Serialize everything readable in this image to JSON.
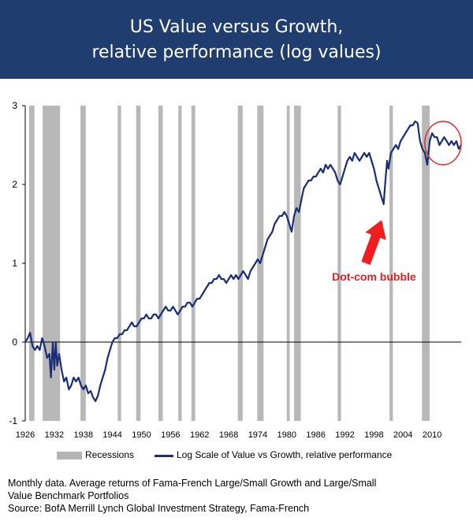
{
  "chart_data": {
    "type": "line",
    "title": "US Value versus Growth,",
    "subtitle": "relative performance (log values)",
    "xlabel": "",
    "ylabel": "",
    "xlim": [
      1926,
      2016
    ],
    "ylim": [
      -1,
      3
    ],
    "y_ticks": [
      "3",
      "2",
      "1",
      "0",
      "-1"
    ],
    "x_ticks": [
      "1926",
      "1932",
      "1938",
      "1944",
      "1950",
      "1956",
      "1962",
      "1968",
      "1974",
      "1980",
      "1986",
      "1992",
      "1998",
      "2004",
      "2010"
    ],
    "grid": false,
    "legend_position": "bottom",
    "legend": {
      "recessions": "Recessions",
      "series": "Log Scale of Value vs Growth, relative performance"
    },
    "recessions": [
      [
        1926.8,
        1927.9
      ],
      [
        1929.6,
        1933.2
      ],
      [
        1937.4,
        1938.5
      ],
      [
        1945.1,
        1945.8
      ],
      [
        1948.9,
        1949.8
      ],
      [
        1953.5,
        1954.4
      ],
      [
        1957.6,
        1958.3
      ],
      [
        1960.3,
        1961.1
      ],
      [
        1969.9,
        1970.9
      ],
      [
        1973.9,
        1975.2
      ],
      [
        1980.0,
        1980.6
      ],
      [
        1981.5,
        1982.9
      ],
      [
        1990.5,
        1991.2
      ],
      [
        2001.2,
        2001.9
      ],
      [
        2007.9,
        2009.5
      ]
    ],
    "series": [
      {
        "name": "Log Scale of Value vs Growth, relative performance",
        "color": "#1a2f7a",
        "points": [
          [
            1926.0,
            0.0
          ],
          [
            1926.5,
            0.05
          ],
          [
            1927.0,
            0.12
          ],
          [
            1927.5,
            -0.05
          ],
          [
            1928.0,
            -0.1
          ],
          [
            1928.5,
            -0.05
          ],
          [
            1929.0,
            -0.1
          ],
          [
            1929.5,
            0.05
          ],
          [
            1930.0,
            -0.05
          ],
          [
            1930.5,
            -0.2
          ],
          [
            1931.0,
            -0.15
          ],
          [
            1931.3,
            -0.45
          ],
          [
            1931.7,
            0.0
          ],
          [
            1932.0,
            -0.35
          ],
          [
            1932.3,
            0.0
          ],
          [
            1932.6,
            -0.3
          ],
          [
            1933.0,
            -0.15
          ],
          [
            1933.5,
            -0.35
          ],
          [
            1934.0,
            -0.5
          ],
          [
            1934.5,
            -0.45
          ],
          [
            1935.0,
            -0.6
          ],
          [
            1935.5,
            -0.55
          ],
          [
            1936.0,
            -0.45
          ],
          [
            1936.5,
            -0.5
          ],
          [
            1937.0,
            -0.45
          ],
          [
            1937.5,
            -0.55
          ],
          [
            1938.0,
            -0.6
          ],
          [
            1938.5,
            -0.55
          ],
          [
            1939.0,
            -0.65
          ],
          [
            1939.5,
            -0.62
          ],
          [
            1940.0,
            -0.7
          ],
          [
            1940.5,
            -0.75
          ],
          [
            1941.0,
            -0.68
          ],
          [
            1941.5,
            -0.55
          ],
          [
            1942.0,
            -0.45
          ],
          [
            1942.5,
            -0.35
          ],
          [
            1943.0,
            -0.2
          ],
          [
            1943.5,
            -0.1
          ],
          [
            1944.0,
            0.0
          ],
          [
            1944.5,
            0.05
          ],
          [
            1945.0,
            0.05
          ],
          [
            1945.5,
            0.1
          ],
          [
            1946.0,
            0.1
          ],
          [
            1946.5,
            0.15
          ],
          [
            1947.0,
            0.15
          ],
          [
            1947.5,
            0.2
          ],
          [
            1948.0,
            0.25
          ],
          [
            1948.5,
            0.2
          ],
          [
            1949.0,
            0.2
          ],
          [
            1949.5,
            0.25
          ],
          [
            1950.0,
            0.3
          ],
          [
            1950.5,
            0.3
          ],
          [
            1951.0,
            0.35
          ],
          [
            1951.5,
            0.3
          ],
          [
            1952.0,
            0.3
          ],
          [
            1952.5,
            0.35
          ],
          [
            1953.0,
            0.35
          ],
          [
            1953.5,
            0.3
          ],
          [
            1954.0,
            0.35
          ],
          [
            1954.5,
            0.4
          ],
          [
            1955.0,
            0.45
          ],
          [
            1955.5,
            0.4
          ],
          [
            1956.0,
            0.4
          ],
          [
            1956.5,
            0.45
          ],
          [
            1957.0,
            0.4
          ],
          [
            1957.5,
            0.35
          ],
          [
            1958.0,
            0.4
          ],
          [
            1958.5,
            0.45
          ],
          [
            1959.0,
            0.45
          ],
          [
            1959.5,
            0.5
          ],
          [
            1960.0,
            0.5
          ],
          [
            1960.5,
            0.45
          ],
          [
            1961.0,
            0.5
          ],
          [
            1961.5,
            0.55
          ],
          [
            1962.0,
            0.55
          ],
          [
            1962.5,
            0.6
          ],
          [
            1963.0,
            0.65
          ],
          [
            1963.5,
            0.7
          ],
          [
            1964.0,
            0.75
          ],
          [
            1964.5,
            0.75
          ],
          [
            1965.0,
            0.8
          ],
          [
            1965.5,
            0.8
          ],
          [
            1966.0,
            0.85
          ],
          [
            1966.5,
            0.8
          ],
          [
            1967.0,
            0.8
          ],
          [
            1967.5,
            0.75
          ],
          [
            1968.0,
            0.8
          ],
          [
            1968.5,
            0.85
          ],
          [
            1969.0,
            0.8
          ],
          [
            1969.5,
            0.85
          ],
          [
            1970.0,
            0.8
          ],
          [
            1970.5,
            0.85
          ],
          [
            1971.0,
            0.9
          ],
          [
            1971.5,
            0.85
          ],
          [
            1972.0,
            0.8
          ],
          [
            1972.5,
            0.9
          ],
          [
            1973.0,
            0.95
          ],
          [
            1973.5,
            1.0
          ],
          [
            1974.0,
            1.05
          ],
          [
            1974.5,
            1.0
          ],
          [
            1975.0,
            1.1
          ],
          [
            1975.5,
            1.2
          ],
          [
            1976.0,
            1.3
          ],
          [
            1976.5,
            1.35
          ],
          [
            1977.0,
            1.4
          ],
          [
            1977.5,
            1.5
          ],
          [
            1978.0,
            1.55
          ],
          [
            1978.5,
            1.6
          ],
          [
            1979.0,
            1.6
          ],
          [
            1979.5,
            1.65
          ],
          [
            1980.0,
            1.6
          ],
          [
            1980.5,
            1.5
          ],
          [
            1981.0,
            1.4
          ],
          [
            1981.5,
            1.6
          ],
          [
            1982.0,
            1.7
          ],
          [
            1982.5,
            1.65
          ],
          [
            1983.0,
            1.8
          ],
          [
            1983.5,
            1.95
          ],
          [
            1984.0,
            2.0
          ],
          [
            1984.5,
            2.05
          ],
          [
            1985.0,
            2.05
          ],
          [
            1985.5,
            2.1
          ],
          [
            1986.0,
            2.1
          ],
          [
            1986.5,
            2.15
          ],
          [
            1987.0,
            2.2
          ],
          [
            1987.5,
            2.15
          ],
          [
            1988.0,
            2.25
          ],
          [
            1988.5,
            2.2
          ],
          [
            1989.0,
            2.25
          ],
          [
            1989.5,
            2.2
          ],
          [
            1990.0,
            2.15
          ],
          [
            1990.5,
            2.05
          ],
          [
            1991.0,
            2.0
          ],
          [
            1991.5,
            2.1
          ],
          [
            1992.0,
            2.2
          ],
          [
            1992.5,
            2.3
          ],
          [
            1993.0,
            2.35
          ],
          [
            1993.5,
            2.3
          ],
          [
            1994.0,
            2.4
          ],
          [
            1994.5,
            2.35
          ],
          [
            1995.0,
            2.3
          ],
          [
            1995.5,
            2.35
          ],
          [
            1996.0,
            2.4
          ],
          [
            1996.5,
            2.35
          ],
          [
            1997.0,
            2.4
          ],
          [
            1997.5,
            2.3
          ],
          [
            1998.0,
            2.2
          ],
          [
            1998.5,
            2.05
          ],
          [
            1999.0,
            1.95
          ],
          [
            1999.5,
            1.85
          ],
          [
            2000.0,
            1.75
          ],
          [
            2000.3,
            2.0
          ],
          [
            2000.7,
            2.3
          ],
          [
            2001.0,
            2.2
          ],
          [
            2001.5,
            2.4
          ],
          [
            2002.0,
            2.45
          ],
          [
            2002.5,
            2.5
          ],
          [
            2003.0,
            2.45
          ],
          [
            2003.5,
            2.55
          ],
          [
            2004.0,
            2.6
          ],
          [
            2004.5,
            2.65
          ],
          [
            2005.0,
            2.7
          ],
          [
            2005.5,
            2.75
          ],
          [
            2006.0,
            2.75
          ],
          [
            2006.5,
            2.8
          ],
          [
            2007.0,
            2.78
          ],
          [
            2007.5,
            2.55
          ],
          [
            2008.0,
            2.45
          ],
          [
            2008.5,
            2.4
          ],
          [
            2009.0,
            2.25
          ],
          [
            2009.5,
            2.55
          ],
          [
            2010.0,
            2.65
          ],
          [
            2010.5,
            2.6
          ],
          [
            2011.0,
            2.6
          ],
          [
            2011.5,
            2.5
          ],
          [
            2012.0,
            2.55
          ],
          [
            2012.5,
            2.6
          ],
          [
            2013.0,
            2.55
          ],
          [
            2013.5,
            2.5
          ],
          [
            2014.0,
            2.55
          ],
          [
            2014.5,
            2.5
          ],
          [
            2015.0,
            2.55
          ],
          [
            2015.5,
            2.45
          ],
          [
            2016.0,
            2.5
          ]
        ]
      }
    ],
    "annotations": [
      {
        "text": "Dot-com bubble",
        "color": "#e31e24",
        "x": 1998.0,
        "y": 0.78,
        "arrow_from": [
          1996.3,
          1.0
        ],
        "arrow_to": [
          1999.6,
          1.55
        ]
      }
    ],
    "highlight_circle": {
      "color": "#d32f2f",
      "x_range": [
        2008.5,
        2016.0
      ],
      "y_range": [
        2.25,
        2.8
      ]
    }
  },
  "notes": [
    "Monthly data. Average returns of Fama-French Large/Small Growth and Large/Small",
    "Value Benchmark Portfolios",
    "Source: BofA Merrill Lynch Global Investment Strategy, Fama-French"
  ]
}
